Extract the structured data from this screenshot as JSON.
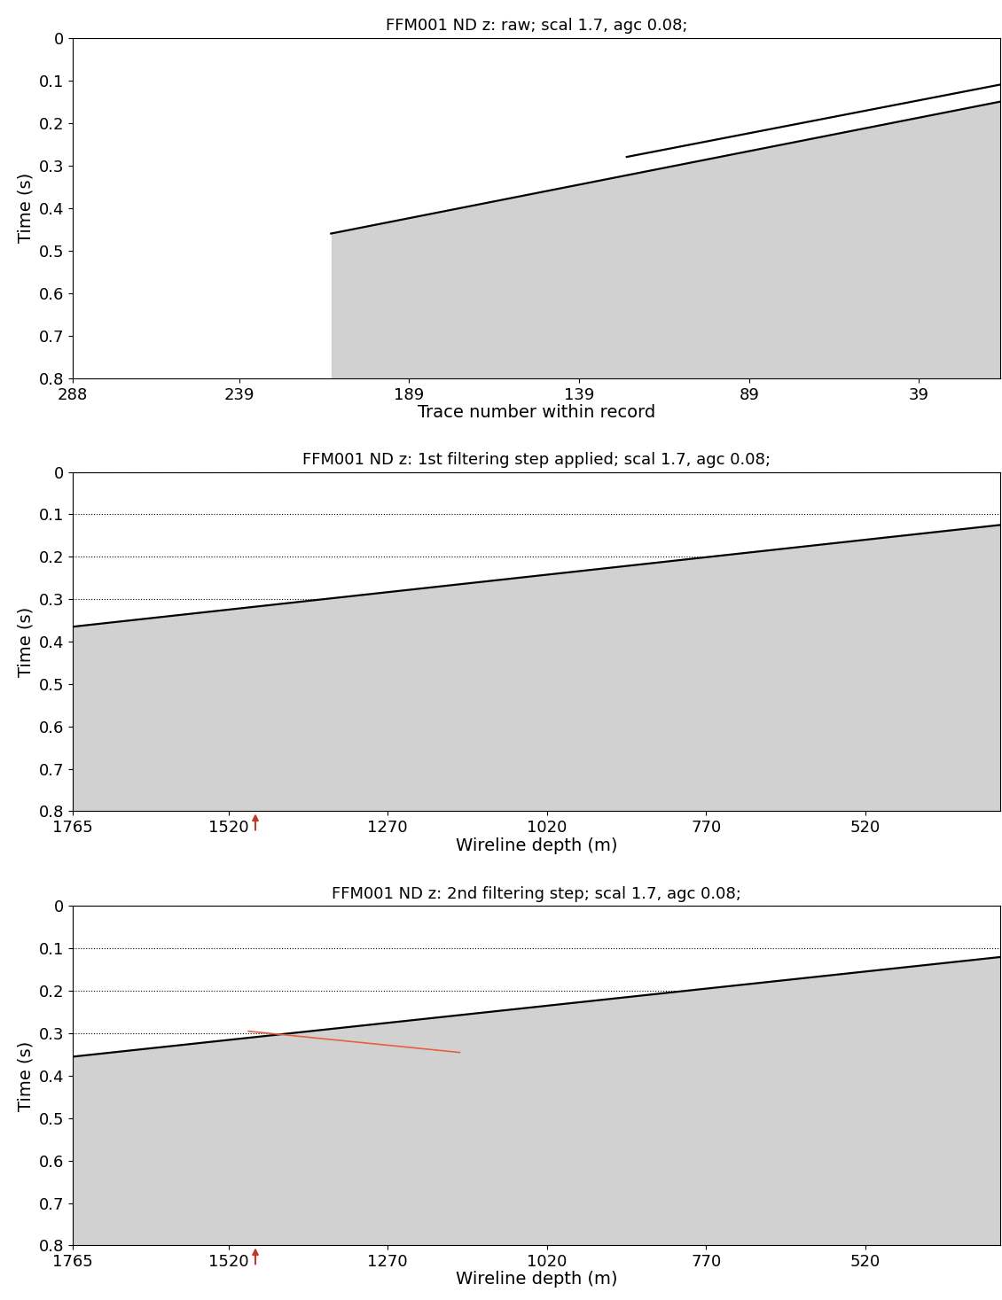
{
  "chart_data": [
    {
      "type": "line",
      "title": "FFM001 ND z: raw; scal 1.7, agc 0.08;",
      "x_label": "Trace number within record",
      "y_label": "Time (s)",
      "xlim": [
        288,
        15
      ],
      "ylim": [
        0.8,
        0
      ],
      "xticks": [
        288,
        239,
        189,
        139,
        89,
        39
      ],
      "yticks": [
        0,
        0.1,
        0.2,
        0.3,
        0.4,
        0.5,
        0.6,
        0.7,
        0.8
      ],
      "grid": false,
      "series": [
        {
          "x": [
            212,
            15
          ],
          "values": [
            0.46,
            0.15
          ],
          "color": "#000000",
          "line_style": "solid"
        },
        {
          "x": [
            125,
            15
          ],
          "values": [
            0.28,
            0.11
          ],
          "color": "#000000",
          "line_style": "solid"
        }
      ]
    },
    {
      "type": "line",
      "title": "FFM001 ND z: 1st filtering step applied; scal 1.7, agc 0.08;",
      "x_label": "Wireline depth (m)",
      "y_label": "Time (s)",
      "xlim": [
        1765,
        307
      ],
      "ylim": [
        0.8,
        0
      ],
      "xticks": [
        1765,
        1520,
        1270,
        1020,
        770,
        520
      ],
      "yticks": [
        0,
        0.1,
        0.2,
        0.3,
        0.4,
        0.5,
        0.6,
        0.7,
        0.8
      ],
      "grid": true,
      "depth_marker": {
        "x": 1478,
        "color": "#c0392b"
      },
      "series": [
        {
          "x": [
            1765,
            307
          ],
          "values": [
            0.365,
            0.125
          ],
          "color": "#000000",
          "line_style": "solid"
        }
      ]
    },
    {
      "type": "line",
      "title": "FFM001 ND z: 2nd filtering step; scal 1.7, agc 0.08;",
      "x_label": "Wireline depth (m)",
      "y_label": "Time (s)",
      "xlim": [
        1765,
        307
      ],
      "ylim": [
        0.8,
        0
      ],
      "xticks": [
        1765,
        1520,
        1270,
        1020,
        770,
        520
      ],
      "yticks": [
        0,
        0.1,
        0.2,
        0.3,
        0.4,
        0.5,
        0.6,
        0.7,
        0.8
      ],
      "grid": true,
      "depth_marker": {
        "x": 1478,
        "color": "#c0392b"
      },
      "series": [
        {
          "x": [
            1765,
            307
          ],
          "values": [
            0.355,
            0.12
          ],
          "color": "#000000",
          "line_style": "solid"
        },
        {
          "x": [
            1489,
            1157
          ],
          "values": [
            0.295,
            0.345
          ],
          "color": "#e8603c",
          "line_style": "solid"
        }
      ]
    }
  ]
}
